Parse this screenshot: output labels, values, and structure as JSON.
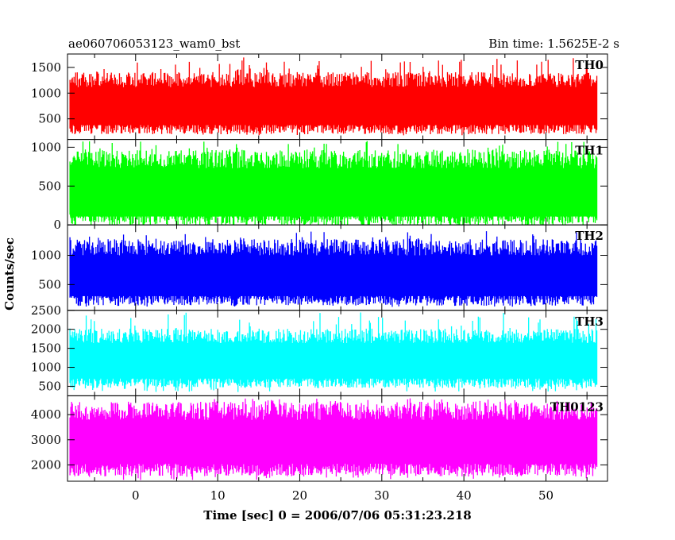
{
  "header": {
    "title": "ae060706053123_wam0_bst",
    "bin_time": "Bin time: 1.5625E-2 s"
  },
  "axes": {
    "ylabel": "Counts/sec",
    "xlabel": "Time [sec] 0 = 2006/07/06 05:31:23.218"
  },
  "chart_data": {
    "type": "line",
    "title": "ae060706053123_wam0_bst",
    "subtitle": "Bin time: 1.5625E-2 s",
    "xlabel": "Time [sec] 0 = 2006/07/06 05:31:23.218",
    "ylabel": "Counts/sec",
    "xlim": [
      -8.3,
      57.5
    ],
    "data_xlim": [
      -8.0,
      56.2
    ],
    "x_ticks": [
      0,
      10,
      20,
      30,
      40,
      50
    ],
    "x_tick_labels": [
      "0",
      "10",
      "20",
      "30",
      "40",
      "50"
    ],
    "grid": false,
    "panels": [
      {
        "name": "TH0",
        "color": "#ff0000",
        "ylim": [
          100,
          1760
        ],
        "y_ticks": [
          500,
          1000,
          1500
        ],
        "y_tick_labels": [
          "500",
          "1000",
          "1500"
        ],
        "values": {
          "typical_low": 350,
          "typical_high": 1200,
          "min": 180,
          "max": 1700
        }
      },
      {
        "name": "TH1",
        "color": "#00ff00",
        "ylim": [
          0,
          1100
        ],
        "y_ticks": [
          0,
          500,
          1000
        ],
        "y_tick_labels": [
          "0",
          "500",
          "1000"
        ],
        "values": {
          "typical_low": 100,
          "typical_high": 800,
          "min": 20,
          "max": 1080
        }
      },
      {
        "name": "TH2",
        "color": "#0000ff",
        "ylim": [
          60,
          1520
        ],
        "y_ticks": [
          500,
          1000
        ],
        "y_tick_labels": [
          "500",
          "1000"
        ],
        "values": {
          "typical_low": 280,
          "typical_high": 1080,
          "min": 120,
          "max": 1420
        }
      },
      {
        "name": "TH3",
        "color": "#00ffff",
        "ylim": [
          250,
          2500
        ],
        "y_ticks": [
          500,
          1000,
          1500,
          2000,
          2500
        ],
        "y_tick_labels": [
          "500",
          "1000",
          "1500",
          "2000",
          "2500"
        ],
        "values": {
          "typical_low": 650,
          "typical_high": 1750,
          "min": 350,
          "max": 2450
        }
      },
      {
        "name": "TH0123",
        "color": "#ff00ff",
        "ylim": [
          1350,
          4750
        ],
        "y_ticks": [
          2000,
          3000,
          4000
        ],
        "y_tick_labels": [
          "2000",
          "3000",
          "4000"
        ],
        "values": {
          "typical_low": 1900,
          "typical_high": 4000,
          "min": 1400,
          "max": 4650
        }
      }
    ]
  }
}
